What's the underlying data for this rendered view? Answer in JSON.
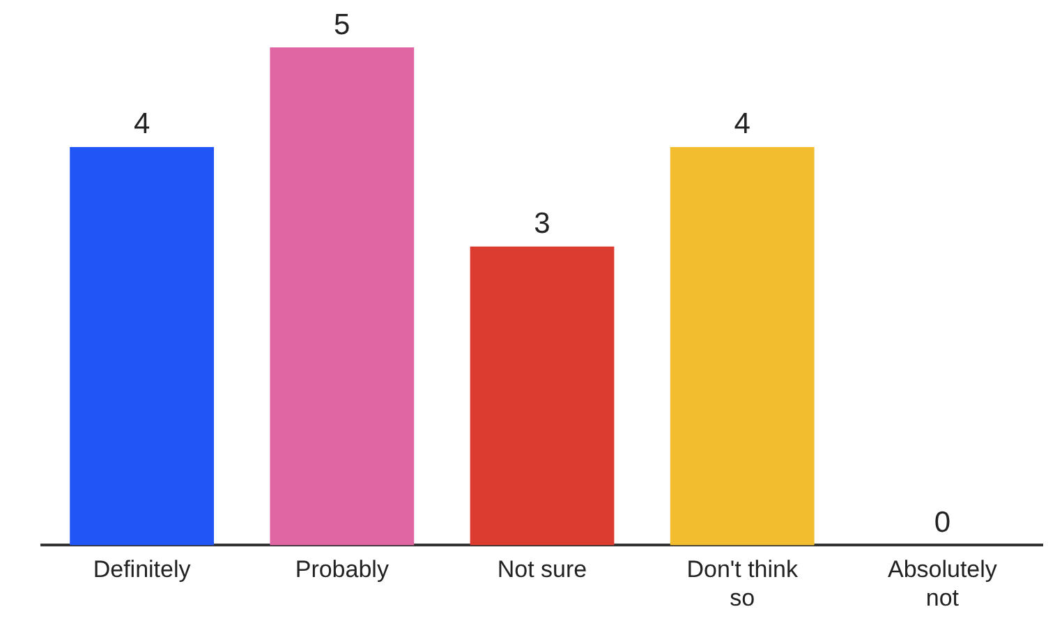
{
  "chart_data": {
    "type": "bar",
    "categories": [
      "Definitely",
      "Probably",
      "Not sure",
      "Don't think so",
      "Absolutely not"
    ],
    "values": [
      4,
      5,
      3,
      4,
      0
    ],
    "colors": [
      "#2255f5",
      "#e066a3",
      "#dc3b30",
      "#f2bd2e",
      "#f2bd2e"
    ],
    "data_labels": true,
    "grid": false,
    "legend": false
  }
}
